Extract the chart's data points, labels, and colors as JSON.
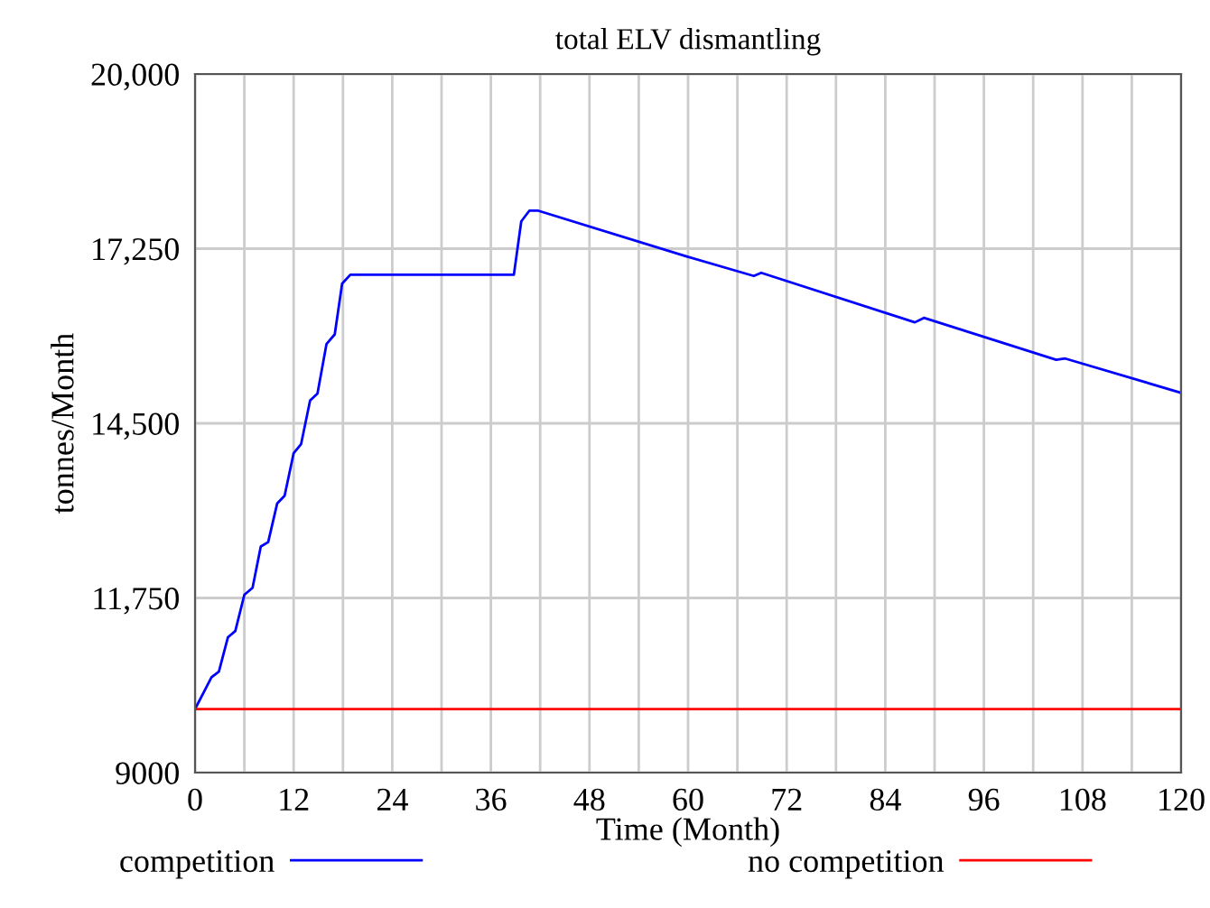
{
  "chart_data": {
    "type": "line",
    "title": "total ELV dismantling",
    "xlabel": "Time (Month)",
    "ylabel": "tonnes/Month",
    "xlim": [
      0,
      120
    ],
    "ylim": [
      9000,
      20000
    ],
    "xticks": [
      0,
      {
        "value": 6,
        "label": null
      },
      12,
      {
        "value": 18,
        "label": null
      },
      24,
      {
        "value": 30,
        "label": null
      },
      36,
      {
        "value": 42,
        "label": null
      },
      48,
      {
        "value": 54,
        "label": null
      },
      60,
      {
        "value": 66,
        "label": null
      },
      72,
      {
        "value": 78,
        "label": null
      },
      84,
      {
        "value": 90,
        "label": null
      },
      96,
      {
        "value": 102,
        "label": null
      },
      108,
      {
        "value": 114,
        "label": null
      },
      120
    ],
    "yticks": [
      {
        "value": 9000,
        "label": "9000"
      },
      {
        "value": 11750,
        "label": "11,750"
      },
      {
        "value": 14500,
        "label": "14,500"
      },
      {
        "value": 17250,
        "label": "17,250"
      },
      {
        "value": 20000,
        "label": "20,000"
      }
    ],
    "grid": true,
    "legend": "bottom",
    "series": [
      {
        "name": "competition",
        "color": "#0000ff",
        "x": [
          0,
          2,
          2.9,
          4,
          4.9,
          6,
          7,
          8,
          8.9,
          10,
          10.9,
          12,
          12.9,
          14,
          14.9,
          16,
          17,
          17.9,
          18.9,
          38.8,
          39.7,
          40.7,
          41.7,
          60,
          68,
          68.9,
          87.6,
          88.7,
          104.8,
          105.9,
          120
        ],
        "values": [
          10000,
          10500,
          10590,
          11130,
          11230,
          11800,
          11910,
          12560,
          12630,
          13240,
          13360,
          14030,
          14170,
          14860,
          14970,
          15750,
          15900,
          16700,
          16840,
          16840,
          17680,
          17850,
          17850,
          17120,
          16820,
          16870,
          16090,
          16160,
          15500,
          15520,
          14980
        ]
      },
      {
        "name": "no competition",
        "color": "#ff0000",
        "x": [
          0,
          120
        ],
        "values": [
          10000,
          10000
        ]
      }
    ]
  }
}
